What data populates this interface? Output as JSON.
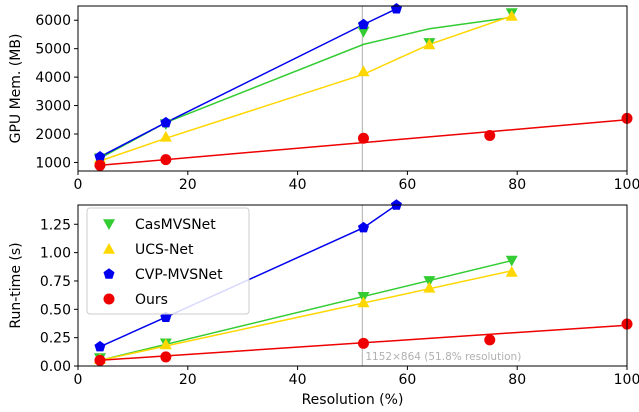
{
  "chart_data": [
    {
      "type": "line",
      "title": "",
      "xlabel": "",
      "ylabel": "GPU Mem. (MB)",
      "xlim": [
        0,
        100
      ],
      "ylim": [
        700,
        6500
      ],
      "xticks": [
        "0",
        "20",
        "40",
        "60",
        "80",
        "100"
      ],
      "xtick_values": [
        0,
        20,
        40,
        60,
        80,
        100
      ],
      "yticks": [
        "1000",
        "2000",
        "3000",
        "4000",
        "5000",
        "6000"
      ],
      "ytick_values": [
        1000,
        2000,
        3000,
        4000,
        5000,
        6000
      ],
      "vline_x": 51.8,
      "grid": false,
      "series": [
        {
          "key": "casmvsnet",
          "color": "#33cc33",
          "marker": "triangle-down",
          "points": [
            [
              4,
              1150
            ],
            [
              16,
              2350
            ],
            [
              52,
              5600
            ],
            [
              64,
              5200
            ],
            [
              79,
              6250
            ]
          ],
          "line": [
            [
              4,
              1150
            ],
            [
              16,
              2400
            ],
            [
              52,
              5150
            ],
            [
              64,
              5700
            ],
            [
              79,
              6100
            ]
          ]
        },
        {
          "key": "ucsnet",
          "color": "#ffd700",
          "marker": "triangle-up",
          "points": [
            [
              4,
              1150
            ],
            [
              16,
              1900
            ],
            [
              52,
              4200
            ],
            [
              64,
              5150
            ],
            [
              79,
              6150
            ]
          ],
          "line": [
            [
              4,
              1050
            ],
            [
              16,
              1850
            ],
            [
              52,
              4100
            ],
            [
              64,
              5150
            ],
            [
              79,
              6150
            ]
          ]
        },
        {
          "key": "cvpmvsnet",
          "color": "#0000ee",
          "marker": "pentagon",
          "points": [
            [
              4,
              1200
            ],
            [
              16,
              2400
            ],
            [
              52,
              5850
            ],
            [
              58,
              6400
            ]
          ],
          "line": [
            [
              4,
              1200
            ],
            [
              16,
              2400
            ],
            [
              52,
              5850
            ],
            [
              58,
              6400
            ]
          ]
        },
        {
          "key": "ours",
          "color": "#ee0000",
          "marker": "circle",
          "points": [
            [
              4,
              900
            ],
            [
              16,
              1100
            ],
            [
              52,
              1850
            ],
            [
              75,
              1950
            ],
            [
              100,
              2550
            ]
          ],
          "line": [
            [
              4,
              900
            ],
            [
              100,
              2500
            ]
          ]
        }
      ]
    },
    {
      "type": "line",
      "title": "",
      "xlabel": "Resolution (%)",
      "ylabel": "Run-time (s)",
      "xlim": [
        0,
        100
      ],
      "ylim": [
        0,
        1.42
      ],
      "xticks": [
        "0",
        "20",
        "40",
        "60",
        "80",
        "100"
      ],
      "xtick_values": [
        0,
        20,
        40,
        60,
        80,
        100
      ],
      "yticks": [
        "0.00",
        "0.25",
        "0.50",
        "0.75",
        "1.00",
        "1.25"
      ],
      "ytick_values": [
        0,
        0.25,
        0.5,
        0.75,
        1.0,
        1.25
      ],
      "vline_x": 51.8,
      "annotation": "1152×864 (51.8% resolution)",
      "grid": false,
      "legend": {
        "position": "top-left",
        "entries": [
          {
            "key": "casmvsnet",
            "label": "CasMVSNet"
          },
          {
            "key": "ucsnet",
            "label": "UCS-Net"
          },
          {
            "key": "cvpmvsnet",
            "label": "CVP-MVSNet"
          },
          {
            "key": "ours",
            "label": "Ours"
          }
        ]
      },
      "series": [
        {
          "key": "casmvsnet",
          "color": "#33cc33",
          "marker": "triangle-down",
          "points": [
            [
              4,
              0.07
            ],
            [
              16,
              0.2
            ],
            [
              52,
              0.61
            ],
            [
              64,
              0.75
            ],
            [
              79,
              0.93
            ]
          ],
          "line": [
            [
              4,
              0.05
            ],
            [
              79,
              0.93
            ]
          ]
        },
        {
          "key": "ucsnet",
          "color": "#ffd700",
          "marker": "triangle-up",
          "points": [
            [
              4,
              0.06
            ],
            [
              16,
              0.19
            ],
            [
              52,
              0.56
            ],
            [
              64,
              0.69
            ],
            [
              79,
              0.83
            ]
          ],
          "line": [
            [
              4,
              0.05
            ],
            [
              79,
              0.84
            ]
          ]
        },
        {
          "key": "cvpmvsnet",
          "color": "#0000ee",
          "marker": "pentagon",
          "points": [
            [
              4,
              0.17
            ],
            [
              16,
              0.43
            ],
            [
              52,
              1.22
            ],
            [
              58,
              1.42
            ]
          ],
          "line": [
            [
              4,
              0.17
            ],
            [
              16,
              0.43
            ],
            [
              52,
              1.22
            ],
            [
              58,
              1.42
            ]
          ]
        },
        {
          "key": "ours",
          "color": "#ee0000",
          "marker": "circle",
          "points": [
            [
              4,
              0.05
            ],
            [
              16,
              0.08
            ],
            [
              52,
              0.2
            ],
            [
              75,
              0.23
            ],
            [
              100,
              0.37
            ]
          ],
          "line": [
            [
              4,
              0.05
            ],
            [
              100,
              0.36
            ]
          ]
        }
      ]
    }
  ]
}
